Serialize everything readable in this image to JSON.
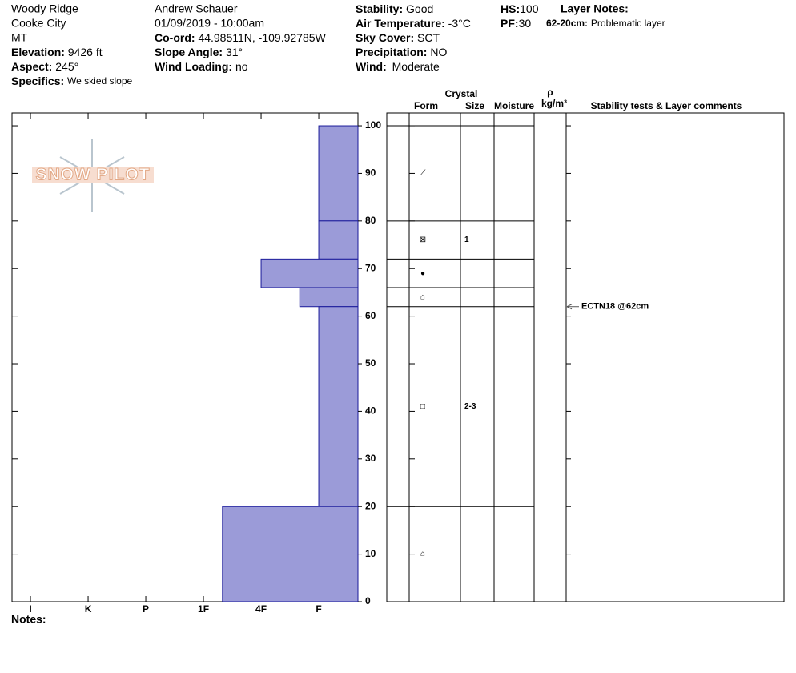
{
  "header": {
    "location": [
      "Woody Ridge",
      "Cooke City",
      "MT"
    ],
    "site_fields": [
      {
        "label": "Elevation:",
        "value": "9426 ft"
      },
      {
        "label": "Aspect:",
        "value": "245°"
      },
      {
        "label": "Specifics:",
        "value": "We skied slope"
      }
    ],
    "observer": "Andrew Schauer",
    "datetime": "01/09/2019 - 10:00am",
    "slope_fields": [
      {
        "label": "Co-ord:",
        "value": "44.98511N, -109.92785W"
      },
      {
        "label": "Slope Angle:",
        "value": "31°"
      },
      {
        "label": "Wind Loading:",
        "value": "no"
      }
    ],
    "weather_fields": [
      {
        "label": "Stability:",
        "value": "Good"
      },
      {
        "label": "Air Temperature:",
        "value": "-3°C"
      },
      {
        "label": "Sky Cover:",
        "value": "SCT"
      },
      {
        "label": "Precipitation:",
        "value": "NO"
      },
      {
        "label": "Wind:",
        "value": "Moderate"
      }
    ],
    "depth_fields": [
      {
        "label": "HS:",
        "value": "100"
      },
      {
        "label": "PF:",
        "value": "30"
      }
    ],
    "layer_notes_title": "Layer Notes:",
    "layer_notes": [
      {
        "range": "62-20cm:",
        "text": "Problematic layer"
      }
    ],
    "logo": "SNOW PILOT",
    "notes_label": "Notes:"
  },
  "chart_data": {
    "type": "snow-profile",
    "xlim": [
      0.32,
      6.32
    ],
    "x_reversed": true,
    "xticks": [
      {
        "value": 6,
        "label": "I"
      },
      {
        "value": 5,
        "label": "K"
      },
      {
        "value": 4,
        "label": "P"
      },
      {
        "value": 3,
        "label": "1F"
      },
      {
        "value": 2,
        "label": "4F"
      },
      {
        "value": 1,
        "label": "F"
      }
    ],
    "ylim": [
      0,
      102.7
    ],
    "yticks": [
      0,
      10,
      20,
      30,
      40,
      50,
      60,
      70,
      80,
      90,
      100
    ],
    "color": "#9b9bd8",
    "edge_color": "#1a1a9a",
    "layers": [
      {
        "top": 100,
        "bottom": 80,
        "hardness": 1,
        "form": "⟋"
      },
      {
        "top": 80,
        "bottom": 72,
        "hardness": 1,
        "form": "⊠",
        "size": "1"
      },
      {
        "top": 72,
        "bottom": 66,
        "hardness": 2,
        "form": "●"
      },
      {
        "top": 66,
        "bottom": 62,
        "hardness": 1.33,
        "form": "⌂"
      },
      {
        "top": 62,
        "bottom": 20,
        "hardness": 1,
        "form": "□",
        "size": "2-3"
      },
      {
        "top": 20,
        "bottom": 0,
        "hardness": 2.67,
        "form": "⌂"
      }
    ],
    "table_headers": {
      "crystal": "Crystal",
      "form": "Form",
      "size": "Size",
      "moisture": "Moisture",
      "rho": "ρ",
      "density": "kg/m³",
      "comments": "Stability tests & Layer comments"
    },
    "tests": [
      {
        "label": "ECTN18 @62cm",
        "depth": 62
      }
    ]
  }
}
